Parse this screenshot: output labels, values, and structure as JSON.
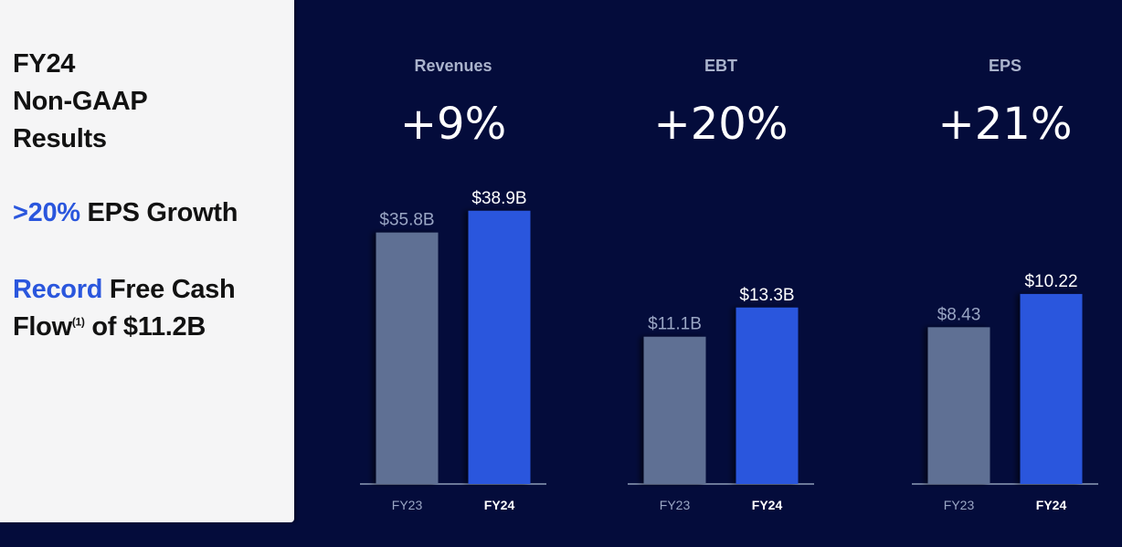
{
  "left_panel": {
    "title_lines": [
      "FY24",
      "Non-GAAP",
      "Results"
    ],
    "point1": {
      "accent": ">20%",
      "rest": " EPS Growth"
    },
    "point2": {
      "accent": "Record",
      "rest": " Free Cash",
      "line2_pre": "Flow",
      "sup": "(1)",
      "line2_post": " of $11.2B"
    }
  },
  "colors": {
    "background": "#040c3b",
    "panel": "#f5f5f6",
    "accent": "#2a56dd",
    "fy23_bar": "#5e6f94",
    "fy24_bar": "#2a56dd",
    "fy23_label": "#9aa6c4",
    "fy24_label": "#ffffff",
    "axis": "#6b7898",
    "metric_title": "#aab3cc"
  },
  "chart_data": [
    {
      "type": "bar",
      "title": "Revenues",
      "change": "+9%",
      "categories": [
        "FY23",
        "FY24"
      ],
      "values": [
        35.8,
        38.9
      ],
      "value_labels": [
        "$35.8B",
        "$38.9B"
      ],
      "ylim": [
        0,
        44.2
      ]
    },
    {
      "type": "bar",
      "title": "EBT",
      "change": "+20%",
      "categories": [
        "FY23",
        "FY24"
      ],
      "values": [
        11.1,
        13.3
      ],
      "value_labels": [
        "$11.1B",
        "$13.3B"
      ],
      "ylim": [
        0,
        23.4
      ]
    },
    {
      "type": "bar",
      "title": "EPS",
      "change": "+21%",
      "categories": [
        "FY23",
        "FY24"
      ],
      "values": [
        8.43,
        10.22
      ],
      "value_labels": [
        "$8.43",
        "$10.22"
      ],
      "ylim": [
        0,
        16.7
      ]
    }
  ]
}
